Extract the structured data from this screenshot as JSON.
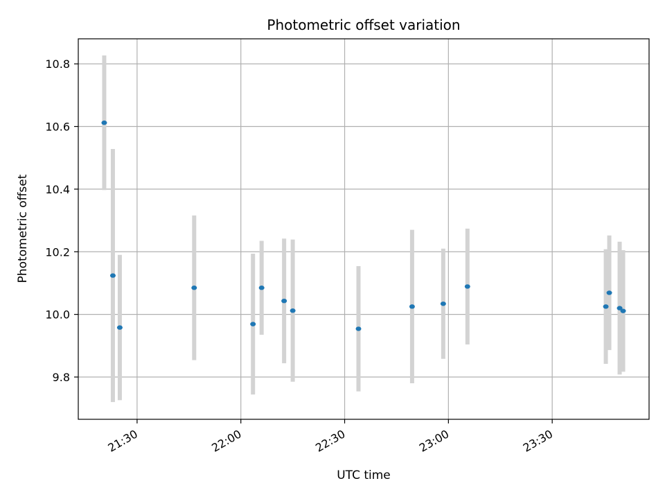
{
  "chart_data": {
    "type": "scatter",
    "title": "Photometric offset variation",
    "xlabel": "UTC time",
    "ylabel": "Photometric offset",
    "grid": true,
    "x_axis_kind": "time",
    "xlim": [
      "21:13",
      "23:58"
    ],
    "ylim": [
      9.665,
      10.88
    ],
    "x_ticks": [
      "21:30",
      "22:00",
      "22:30",
      "23:00",
      "23:30"
    ],
    "y_ticks": [
      9.8,
      10.0,
      10.2,
      10.4,
      10.6,
      10.8
    ],
    "point_color": "#1f77b4",
    "errorbar_color": "#d3d3d3",
    "points": [
      {
        "x": "21:20:30",
        "y": 10.612,
        "err": 0.215
      },
      {
        "x": "21:23:00",
        "y": 10.124,
        "err": 0.404
      },
      {
        "x": "21:25:00",
        "y": 9.958,
        "err": 0.232
      },
      {
        "x": "21:46:30",
        "y": 10.085,
        "err": 0.231
      },
      {
        "x": "22:03:30",
        "y": 9.969,
        "err": 0.225
      },
      {
        "x": "22:06:00",
        "y": 10.085,
        "err": 0.15
      },
      {
        "x": "22:12:30",
        "y": 10.043,
        "err": 0.199
      },
      {
        "x": "22:15:00",
        "y": 10.012,
        "err": 0.227
      },
      {
        "x": "22:34:00",
        "y": 9.954,
        "err": 0.2
      },
      {
        "x": "22:49:30",
        "y": 10.025,
        "err": 0.245
      },
      {
        "x": "22:58:30",
        "y": 10.034,
        "err": 0.176
      },
      {
        "x": "23:05:30",
        "y": 10.089,
        "err": 0.185
      },
      {
        "x": "23:45:30",
        "y": 10.025,
        "err": 0.183
      },
      {
        "x": "23:46:30",
        "y": 10.069,
        "err": 0.183
      },
      {
        "x": "23:49:30",
        "y": 10.02,
        "err": 0.212
      },
      {
        "x": "23:50:30",
        "y": 10.011,
        "err": 0.194
      }
    ]
  }
}
